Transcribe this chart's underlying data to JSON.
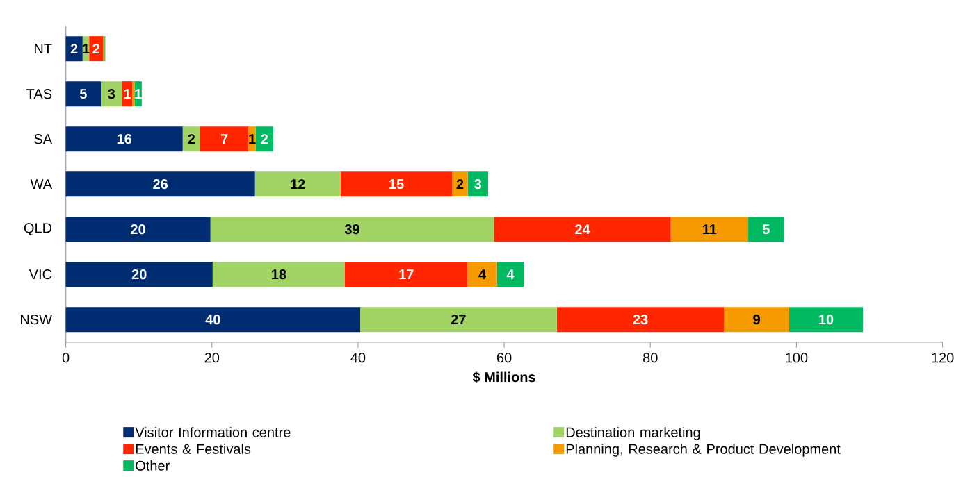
{
  "chart_data": {
    "type": "bar",
    "orientation": "horizontal",
    "stacked": true,
    "xlabel": "$ Millions",
    "categories": [
      "NT",
      "TAS",
      "SA",
      "WA",
      "QLD",
      "VIC",
      "NSW"
    ],
    "xlim": [
      0,
      120
    ],
    "xticks": [
      0,
      20,
      40,
      60,
      80,
      100,
      120
    ],
    "grid": false,
    "legend": "bottom",
    "series": [
      {
        "name": "Visitor Information centre",
        "color": "#002d72",
        "values": [
          2.3,
          4.8,
          16.0,
          25.9,
          19.8,
          20.1,
          40.3
        ],
        "value_labels": [
          "2",
          "5",
          "16",
          "26",
          "20",
          "20",
          "40"
        ]
      },
      {
        "name": "Destination marketing",
        "color": "#a2d465",
        "values": [
          0.9,
          2.9,
          2.4,
          11.7,
          38.8,
          18.1,
          26.9
        ],
        "value_labels": [
          "1",
          "3",
          "2",
          "12",
          "39",
          "18",
          "27"
        ]
      },
      {
        "name": "Events & Festivals",
        "color": "#ff2600",
        "values": [
          1.9,
          1.4,
          6.6,
          15.3,
          24.2,
          16.8,
          22.9
        ],
        "value_labels": [
          "2",
          "1",
          "7",
          "15",
          "24",
          "17",
          "23"
        ]
      },
      {
        "name": "Planning, Research & Product Development",
        "color": "#f59b00",
        "values": [
          0.2,
          0.3,
          1.0,
          2.1,
          10.6,
          4.0,
          8.9
        ],
        "value_labels": [
          null,
          null,
          "1",
          "2",
          "11",
          "4",
          "9"
        ]
      },
      {
        "name": "Other",
        "color": "#00b960",
        "values": [
          0.1,
          1.0,
          2.4,
          2.8,
          4.9,
          3.7,
          10.1
        ],
        "value_labels": [
          null,
          "1",
          "2",
          "3",
          "5",
          "4",
          "10"
        ]
      }
    ]
  }
}
